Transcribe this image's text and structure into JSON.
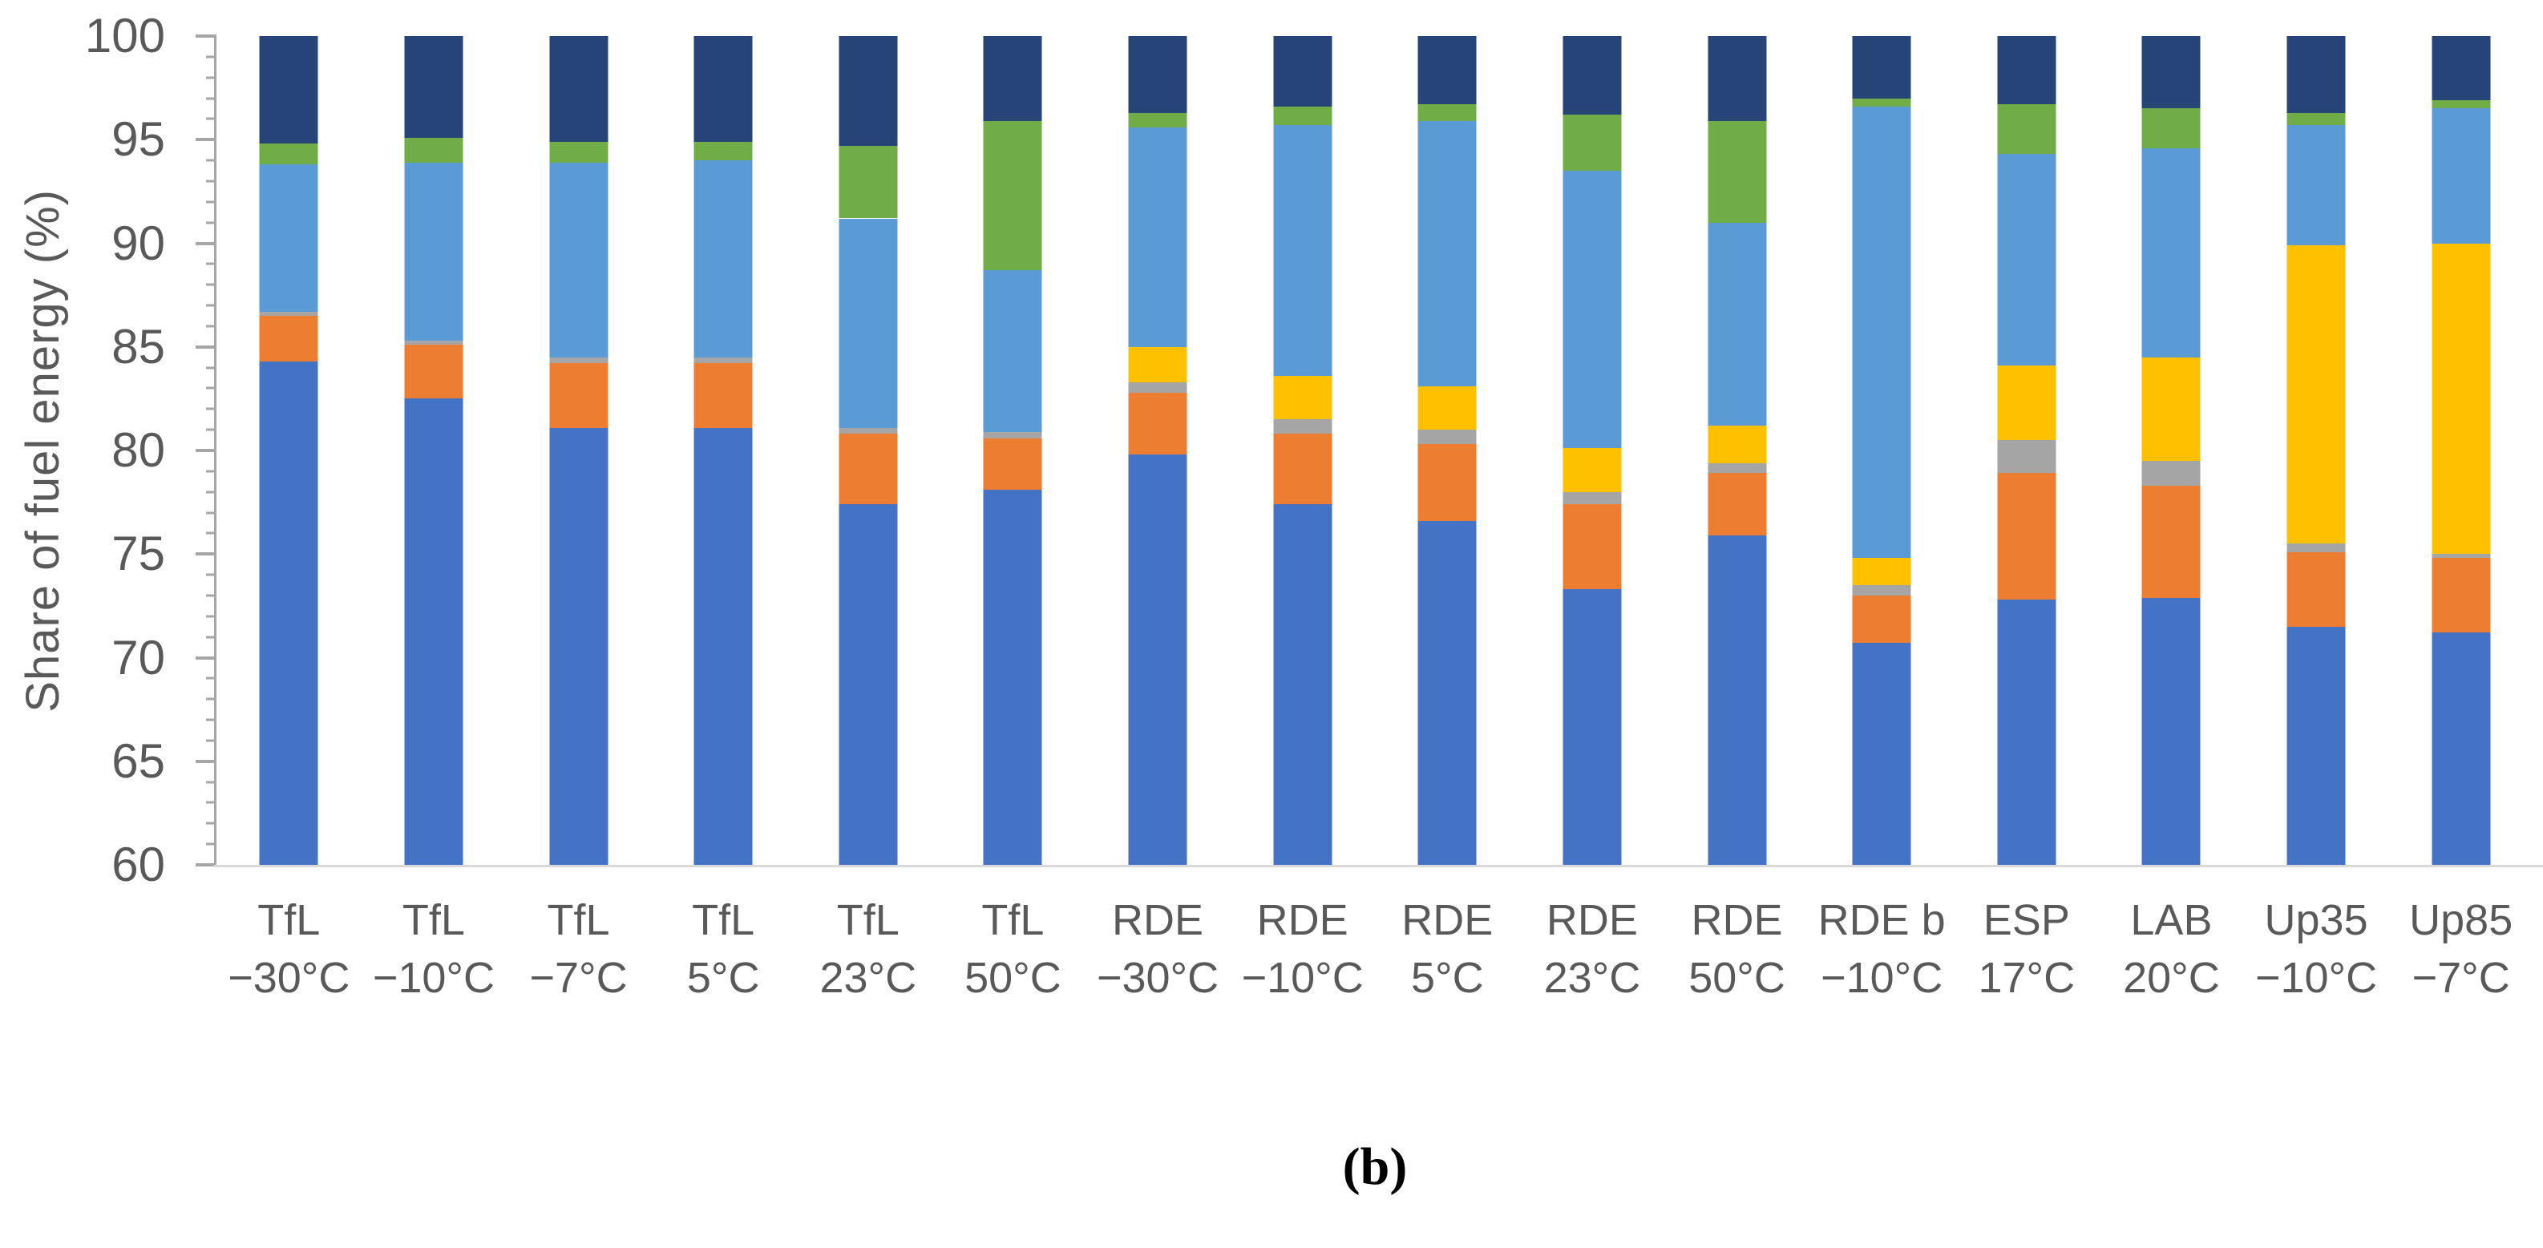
{
  "caption": "(b)",
  "axes": {
    "y_label": "Share of fuel energy (%)",
    "y_ticks": [
      "100",
      "95",
      "90",
      "85",
      "80",
      "75",
      "70",
      "65",
      "60"
    ],
    "y_tick_values": [
      100,
      95,
      90,
      85,
      80,
      75,
      70,
      65,
      60
    ],
    "y_min": 60,
    "y_max": 100,
    "major_step": 5,
    "minor_step": 1
  },
  "chart_data": {
    "type": "bar",
    "stacked": true,
    "title": "",
    "xlabel": "",
    "ylabel": "Share of fuel energy (%)",
    "ylim": [
      60,
      100
    ],
    "baseline": 60,
    "grid": false,
    "legend_position": "none",
    "categories": [
      {
        "line1": "TfL",
        "line2": "−30°C"
      },
      {
        "line1": "TfL",
        "line2": "−10°C"
      },
      {
        "line1": "TfL",
        "line2": "−7°C"
      },
      {
        "line1": "TfL",
        "line2": "5°C"
      },
      {
        "line1": "TfL",
        "line2": "23°C"
      },
      {
        "line1": "TfL",
        "line2": "50°C"
      },
      {
        "line1": "RDE",
        "line2": "−30°C"
      },
      {
        "line1": "RDE",
        "line2": "−10°C"
      },
      {
        "line1": "RDE",
        "line2": "5°C"
      },
      {
        "line1": "RDE",
        "line2": "23°C"
      },
      {
        "line1": "RDE",
        "line2": "50°C"
      },
      {
        "line1": "RDE b",
        "line2": "−10°C"
      },
      {
        "line1": "ESP",
        "line2": "17°C"
      },
      {
        "line1": "LAB",
        "line2": "20°C"
      },
      {
        "line1": "Up35",
        "line2": "−10°C"
      },
      {
        "line1": "Up85",
        "line2": "−7°C"
      }
    ],
    "series": [
      {
        "name": "blue",
        "color": "#4472C4",
        "tops": [
          84.3,
          82.5,
          81.1,
          81.1,
          77.4,
          78.1,
          79.8,
          77.4,
          76.6,
          73.3,
          75.9,
          70.7,
          72.8,
          72.9,
          71.5,
          71.2
        ]
      },
      {
        "name": "orange",
        "color": "#ED7D31",
        "tops": [
          86.5,
          85.1,
          84.2,
          84.2,
          80.8,
          80.6,
          82.8,
          80.8,
          80.3,
          77.4,
          78.9,
          73.0,
          78.9,
          78.3,
          75.1,
          74.8
        ]
      },
      {
        "name": "gray",
        "color": "#A5A5A5",
        "tops": [
          86.7,
          85.3,
          84.5,
          84.5,
          81.1,
          80.9,
          83.3,
          81.5,
          81.0,
          78.0,
          79.4,
          73.5,
          80.5,
          79.5,
          75.5,
          75.0
        ]
      },
      {
        "name": "yellow",
        "color": "#FFC000",
        "tops": [
          86.7,
          85.3,
          84.5,
          84.5,
          81.1,
          80.9,
          85.0,
          83.6,
          83.1,
          80.1,
          81.2,
          74.8,
          84.1,
          84.5,
          89.9,
          90.0
        ]
      },
      {
        "name": "light-blue",
        "color": "#5B9BD5",
        "tops": [
          93.8,
          93.9,
          93.9,
          94.0,
          91.2,
          88.7,
          95.6,
          95.7,
          95.9,
          93.5,
          91.0,
          96.6,
          94.3,
          94.6,
          95.7,
          96.5
        ]
      },
      {
        "name": "green",
        "color": "#70AD47",
        "tops": [
          94.8,
          95.1,
          94.9,
          94.9,
          94.7,
          95.9,
          96.3,
          96.6,
          96.7,
          96.2,
          95.9,
          97.0,
          96.7,
          96.5,
          96.3,
          96.9
        ]
      },
      {
        "name": "dark-blue",
        "color": "#264478",
        "tops": [
          100,
          100,
          100,
          100,
          100,
          100,
          100,
          100,
          100,
          100,
          100,
          100,
          100,
          100,
          100,
          100
        ]
      }
    ]
  }
}
